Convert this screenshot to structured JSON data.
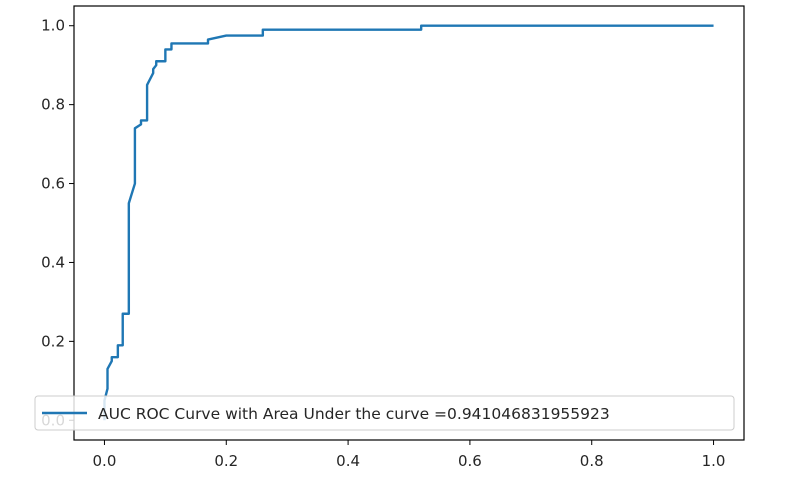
{
  "chart_data": {
    "type": "line",
    "title": "",
    "xlabel": "",
    "ylabel": "",
    "xlim": [
      -0.05,
      1.05
    ],
    "ylim": [
      -0.05,
      1.05
    ],
    "x_ticks": [
      0.0,
      0.2,
      0.4,
      0.6,
      0.8,
      1.0
    ],
    "y_ticks": [
      0.0,
      0.2,
      0.4,
      0.6,
      0.8,
      1.0
    ],
    "x_tick_labels": [
      "0.0",
      "0.2",
      "0.4",
      "0.6",
      "0.8",
      "1.0"
    ],
    "y_tick_labels": [
      "0.0",
      "0.2",
      "0.4",
      "0.6",
      "0.8",
      "1.0"
    ],
    "grid": false,
    "legend_position": "lower-right",
    "series": [
      {
        "name": "AUC ROC Curve with Area Under the curve =0.941046831955923",
        "color": "#1f77b4",
        "x": [
          0.0,
          0.0,
          0.005,
          0.005,
          0.012,
          0.012,
          0.022,
          0.022,
          0.03,
          0.03,
          0.04,
          0.04,
          0.05,
          0.05,
          0.06,
          0.06,
          0.07,
          0.07,
          0.08,
          0.08,
          0.085,
          0.085,
          0.1,
          0.1,
          0.11,
          0.11,
          0.17,
          0.17,
          0.2,
          0.2,
          0.26,
          0.26,
          0.52,
          0.52,
          1.0
        ],
        "y": [
          0.0,
          0.05,
          0.08,
          0.13,
          0.15,
          0.16,
          0.16,
          0.19,
          0.19,
          0.27,
          0.27,
          0.55,
          0.6,
          0.74,
          0.75,
          0.76,
          0.76,
          0.85,
          0.88,
          0.89,
          0.9,
          0.91,
          0.91,
          0.94,
          0.94,
          0.955,
          0.955,
          0.965,
          0.975,
          0.975,
          0.975,
          0.99,
          0.99,
          1.0,
          1.0
        ]
      }
    ]
  }
}
